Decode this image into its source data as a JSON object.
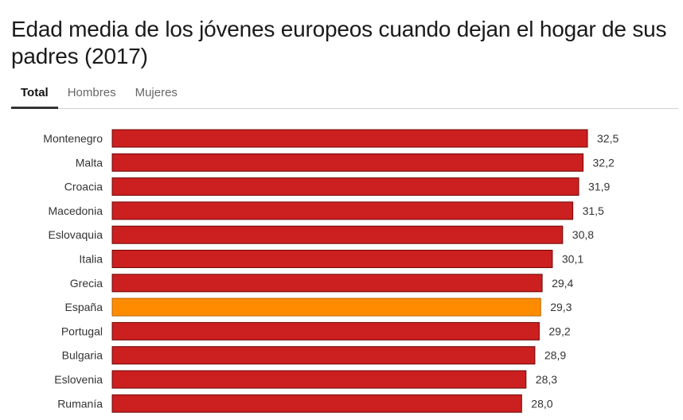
{
  "header": {
    "title": "Edad media de los jóvenes europeos cuando dejan el hogar de sus padres (2017)"
  },
  "tabs": [
    {
      "label": "Total",
      "active": true
    },
    {
      "label": "Hombres",
      "active": false
    },
    {
      "label": "Mujeres",
      "active": false
    }
  ],
  "colors": {
    "bar": "#cc1f1f",
    "highlight": "#ff8c00",
    "bar_stroke": "#6e0a0a"
  },
  "chart_data": {
    "type": "bar",
    "orientation": "horizontal",
    "categories": [
      "Montenegro",
      "Malta",
      "Croacia",
      "Macedonia",
      "Eslovaquia",
      "Italia",
      "Grecia",
      "España",
      "Portugal",
      "Bulgaria",
      "Eslovenia",
      "Rumanía"
    ],
    "values": [
      32.5,
      32.2,
      31.9,
      31.5,
      30.8,
      30.1,
      29.4,
      29.3,
      29.2,
      28.9,
      28.3,
      28.0
    ],
    "value_labels": [
      "32,5",
      "32,2",
      "31,9",
      "31,5",
      "30,8",
      "30,1",
      "29,4",
      "29,3",
      "29,2",
      "28,9",
      "28,3",
      "28,0"
    ],
    "highlight": "España",
    "xlim": [
      0,
      32.5
    ],
    "grid": false,
    "title": "Edad media de los jóvenes europeos cuando dejan el hogar de sus padres (2017)",
    "xlabel": "",
    "ylabel": ""
  }
}
